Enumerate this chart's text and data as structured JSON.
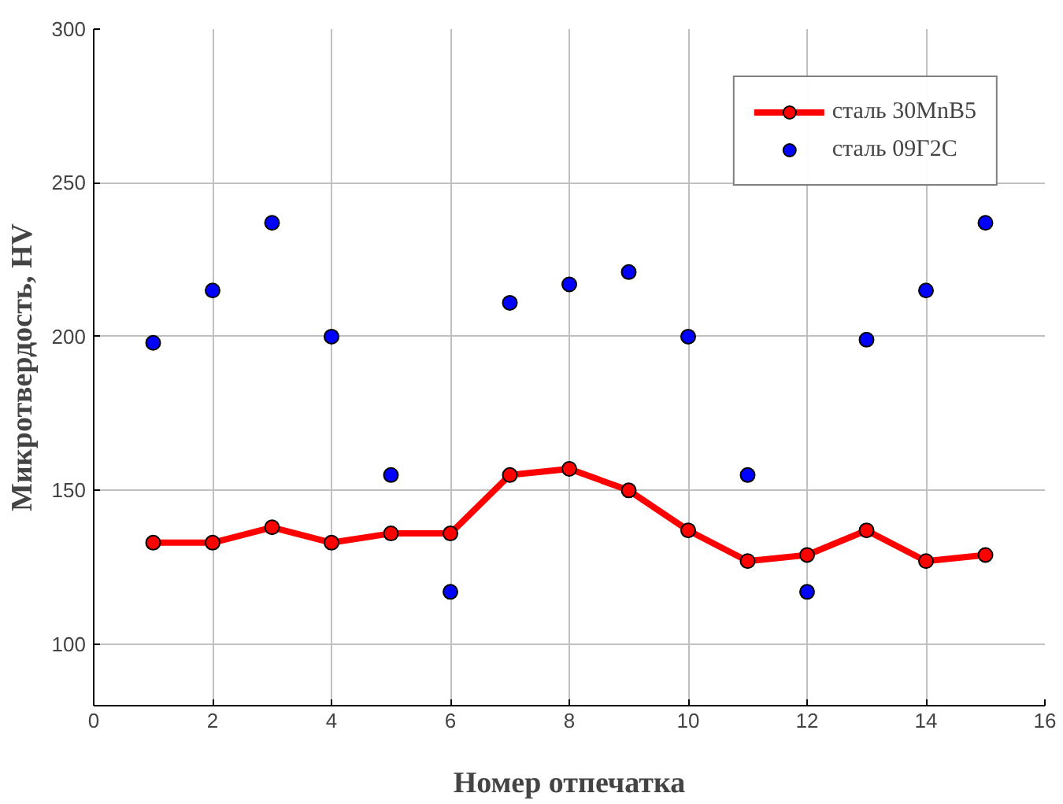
{
  "chart_data": {
    "type": "line",
    "xlabel": "Номер отпечатка",
    "ylabel": "Микротвердость, HV",
    "x": [
      1,
      2,
      3,
      4,
      5,
      6,
      7,
      8,
      9,
      10,
      11,
      12,
      13,
      14,
      15
    ],
    "series": [
      {
        "name": "сталь 30MnB5",
        "color": "#ff0000",
        "marker": "circle",
        "values": [
          133,
          133,
          138,
          133,
          136,
          136,
          155,
          157,
          150,
          137,
          127,
          129,
          137,
          127,
          129
        ]
      },
      {
        "name": "сталь 09Г2С",
        "color": "#0000ff",
        "type": "scatter",
        "marker": "circle",
        "values": [
          198,
          215,
          237,
          200,
          155,
          117,
          211,
          217,
          221,
          200,
          155,
          117,
          199,
          215,
          237
        ]
      }
    ],
    "xlim": [
      0,
      16
    ],
    "xticks": [
      0,
      2,
      4,
      6,
      8,
      10,
      12,
      14,
      16
    ],
    "ylim": [
      80,
      300
    ],
    "yticks": [
      100,
      150,
      200,
      250,
      300
    ],
    "grid": true,
    "legend": "top right"
  }
}
